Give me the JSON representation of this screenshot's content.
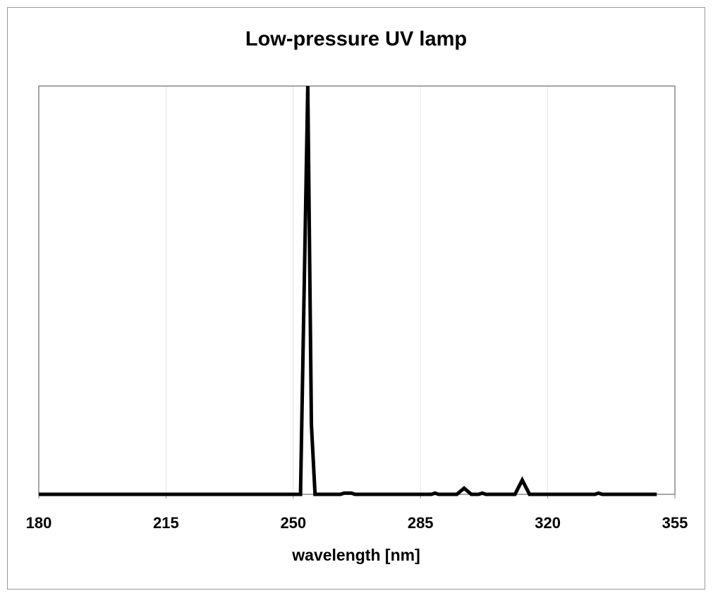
{
  "chart_data": {
    "type": "line",
    "title": "Low-pressure UV lamp",
    "x_label": "wavelength [nm]",
    "x": [
      180,
      252,
      254,
      255,
      256,
      263,
      264,
      266,
      267,
      288,
      289,
      290,
      295,
      297,
      299,
      301,
      302,
      303,
      311,
      313,
      315,
      333,
      334,
      335,
      350
    ],
    "values": [
      0,
      0,
      100,
      17,
      0,
      0,
      0.3,
      0.3,
      0,
      0,
      0.3,
      0,
      0,
      1.5,
      0,
      0,
      0.3,
      0,
      0,
      3.5,
      0,
      0,
      0.3,
      0,
      0
    ],
    "color": "#000000",
    "xlim": [
      180,
      355
    ],
    "xticks": [
      180,
      215,
      250,
      285,
      320,
      355
    ],
    "ylim": [
      0,
      100
    ],
    "grid": true
  }
}
